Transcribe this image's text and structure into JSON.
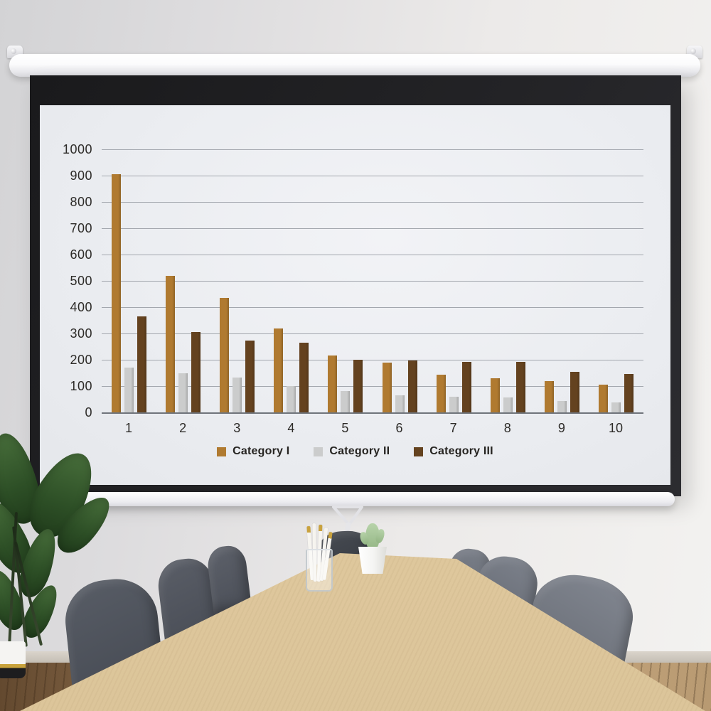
{
  "scene": {
    "wall_color": "#e6e5e4",
    "screen_frame_color": "#1d1d1f",
    "screen_surface_color": "#edeef2",
    "housing_color": "#f6f6f8",
    "table_color": "#d8c095",
    "floor_left_color": "#6e563c",
    "floor_right_color": "#bb9c74",
    "chair_color_left": "#4f545c",
    "chair_color_right": "#71767f"
  },
  "chart_data": {
    "type": "bar",
    "title": "",
    "xlabel": "",
    "ylabel": "",
    "categories": [
      "1",
      "2",
      "3",
      "4",
      "5",
      "6",
      "7",
      "8",
      "9",
      "10"
    ],
    "series": [
      {
        "name": "Category I",
        "color": "#b07a30",
        "values": [
          905,
          520,
          436,
          318,
          216,
          189,
          142,
          131,
          119,
          106
        ]
      },
      {
        "name": "Category II",
        "color": "#cbcccc",
        "values": [
          170,
          150,
          132,
          100,
          80,
          65,
          60,
          57,
          42,
          37
        ]
      },
      {
        "name": "Category III",
        "color": "#64421f",
        "values": [
          365,
          305,
          274,
          265,
          200,
          197,
          193,
          192,
          155,
          146
        ]
      }
    ],
    "ylim": [
      0,
      1000
    ],
    "ytick_step": 100,
    "yticks": [
      "0",
      "100",
      "200",
      "300",
      "400",
      "500",
      "600",
      "700",
      "800",
      "900",
      "1000"
    ],
    "grid": true,
    "legend_position": "bottom",
    "gridline_color": "#a3a7ae",
    "axis_line_color": "#6f747b",
    "tick_label_color": "#2d2b28"
  }
}
